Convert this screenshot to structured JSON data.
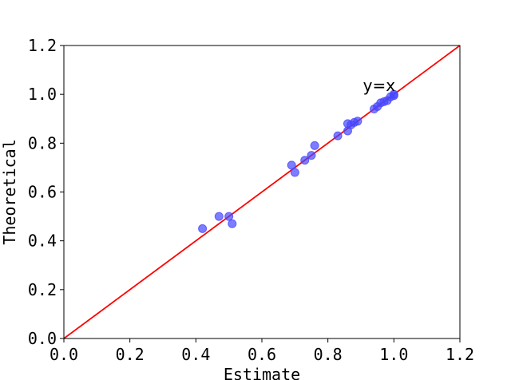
{
  "chart_data": {
    "type": "scatter",
    "title": "",
    "xlabel": "Estimate",
    "ylabel": "Theoretical",
    "xlim": [
      0.0,
      1.2
    ],
    "ylim": [
      0.0,
      1.2
    ],
    "xticks": [
      "0.0",
      "0.2",
      "0.4",
      "0.6",
      "0.8",
      "1.0",
      "1.2"
    ],
    "yticks": [
      "0.0",
      "0.2",
      "0.4",
      "0.6",
      "0.8",
      "1.0",
      "1.2"
    ],
    "grid": false,
    "reference_line": {
      "label": "y=x",
      "color": "#ff0000",
      "x": [
        0.0,
        1.2
      ],
      "y": [
        0.0,
        1.2
      ]
    },
    "annotation": {
      "text": "y=x",
      "x": 0.95,
      "y": 1.04
    },
    "series": [
      {
        "color": "#4646ff",
        "x": [
          0.42,
          0.47,
          0.5,
          0.51,
          0.69,
          0.7,
          0.73,
          0.75,
          0.76,
          0.83,
          0.86,
          0.86,
          0.87,
          0.88,
          0.89,
          0.94,
          0.95,
          0.96,
          0.97,
          0.98,
          0.99,
          1.0,
          1.0
        ],
        "y": [
          0.45,
          0.5,
          0.5,
          0.47,
          0.71,
          0.68,
          0.73,
          0.75,
          0.79,
          0.83,
          0.85,
          0.88,
          0.875,
          0.885,
          0.89,
          0.94,
          0.95,
          0.965,
          0.97,
          0.975,
          0.99,
          0.995,
          1.0
        ]
      }
    ]
  }
}
